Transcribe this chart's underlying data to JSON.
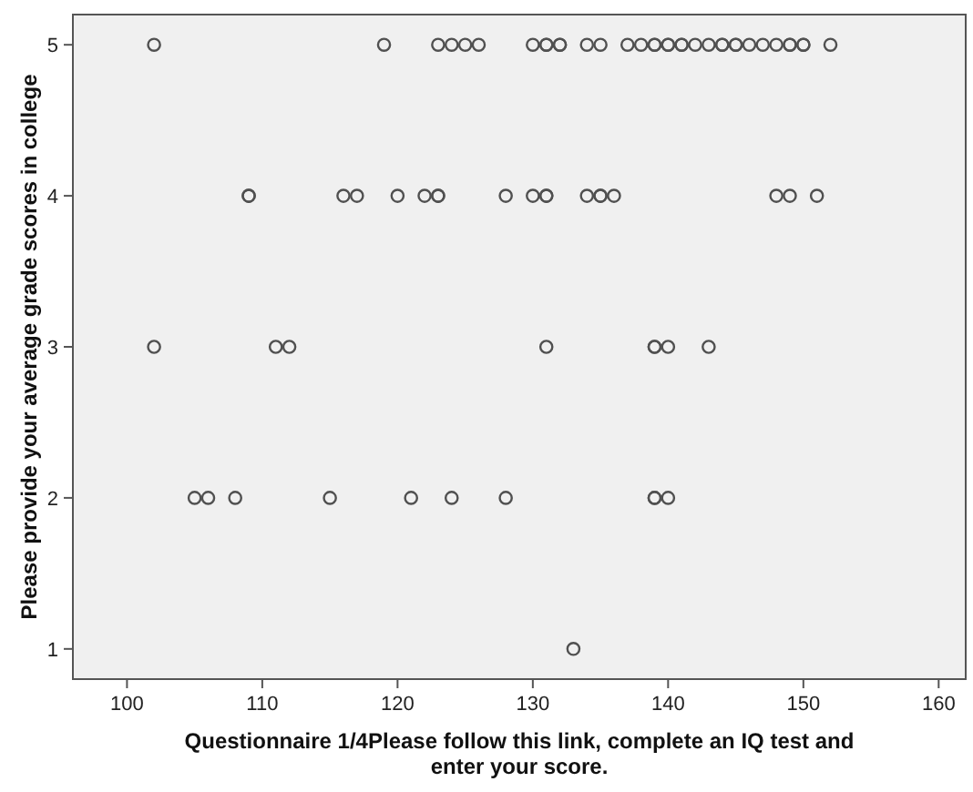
{
  "chart_data": {
    "type": "scatter",
    "xlabel": "Questionnaire 1/4Please follow this link, complete an IQ test and enter your score.",
    "ylabel": "Please provide your average grade scores in college",
    "x": [
      102,
      119,
      123,
      124,
      125,
      126,
      130,
      131,
      131,
      132,
      132,
      134,
      135,
      137,
      138,
      139,
      139,
      140,
      140,
      141,
      141,
      142,
      143,
      144,
      144,
      145,
      145,
      146,
      147,
      148,
      149,
      149,
      150,
      150,
      152,
      109,
      109,
      116,
      117,
      120,
      122,
      123,
      123,
      128,
      130,
      131,
      131,
      134,
      135,
      135,
      136,
      148,
      149,
      151,
      102,
      111,
      112,
      131,
      139,
      139,
      140,
      143,
      105,
      106,
      108,
      115,
      121,
      124,
      128,
      139,
      139,
      140,
      133
    ],
    "series": [
      {
        "color": "#505050",
        "values": [
          5,
          5,
          5,
          5,
          5,
          5,
          5,
          5,
          5,
          5,
          5,
          5,
          5,
          5,
          5,
          5,
          5,
          5,
          5,
          5,
          5,
          5,
          5,
          5,
          5,
          5,
          5,
          5,
          5,
          5,
          5,
          5,
          5,
          5,
          5,
          4,
          4,
          4,
          4,
          4,
          4,
          4,
          4,
          4,
          4,
          4,
          4,
          4,
          4,
          4,
          4,
          4,
          4,
          4,
          3,
          3,
          3,
          3,
          3,
          3,
          3,
          3,
          2,
          2,
          2,
          2,
          2,
          2,
          2,
          2,
          2,
          2,
          1
        ]
      }
    ],
    "xlim": [
      96,
      162
    ],
    "xticks": [
      100,
      110,
      120,
      130,
      140,
      150,
      160
    ],
    "ylim": [
      0.8,
      5.2
    ],
    "yticks": [
      1,
      2,
      3,
      4,
      5
    ],
    "grid": false,
    "marker": "circle"
  }
}
